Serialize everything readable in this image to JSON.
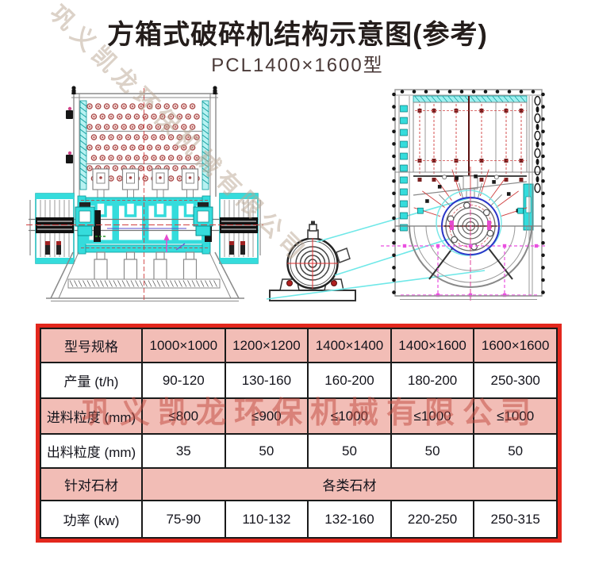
{
  "page": {
    "title": "方箱式破碎机结构示意图(参考)",
    "subtitle": "PCL1400×1600型"
  },
  "watermarks": {
    "diagonal": "巩义凯龙环保机械有限公司",
    "horizontal": "巩义凯龙环保机械有限公司"
  },
  "diagrams": {
    "front_view": "crusher-front-view",
    "side_view": "crusher-side-view",
    "motor": "motor-end-view"
  },
  "table": {
    "header": {
      "label": "型号规格",
      "values": [
        "1000×1000",
        "1200×1200",
        "1400×1400",
        "1400×1600",
        "1600×1600"
      ]
    },
    "rows": [
      {
        "label": "产量 (t/h)",
        "values": [
          "90-120",
          "130-160",
          "160-200",
          "180-200",
          "250-300"
        ]
      },
      {
        "label": "进料粒度 (mm)",
        "values": [
          "≤800",
          "≤900",
          "≤1000",
          "≤1000",
          "≤1000"
        ]
      },
      {
        "label": "出料粒度 (mm)",
        "values": [
          "35",
          "50",
          "50",
          "50",
          "50"
        ]
      },
      {
        "label": "针对石材",
        "merged_value": "各类石材"
      },
      {
        "label": "功率 (kw)",
        "values": [
          "75-90",
          "110-132",
          "132-160",
          "220-250",
          "250-315"
        ]
      }
    ]
  },
  "colors": {
    "table_border_red": "#e3271d",
    "row_pink": "#f2bdb6",
    "cell_border": "#1a1a1a",
    "drawing_cyan": "#35dcdc",
    "belt_cyan": "#6fe8e8",
    "centerline_red": "#d04040",
    "magenta": "#ea4fe0",
    "rotor_blue": "#2a35c8",
    "dot_red": "#a84848"
  }
}
